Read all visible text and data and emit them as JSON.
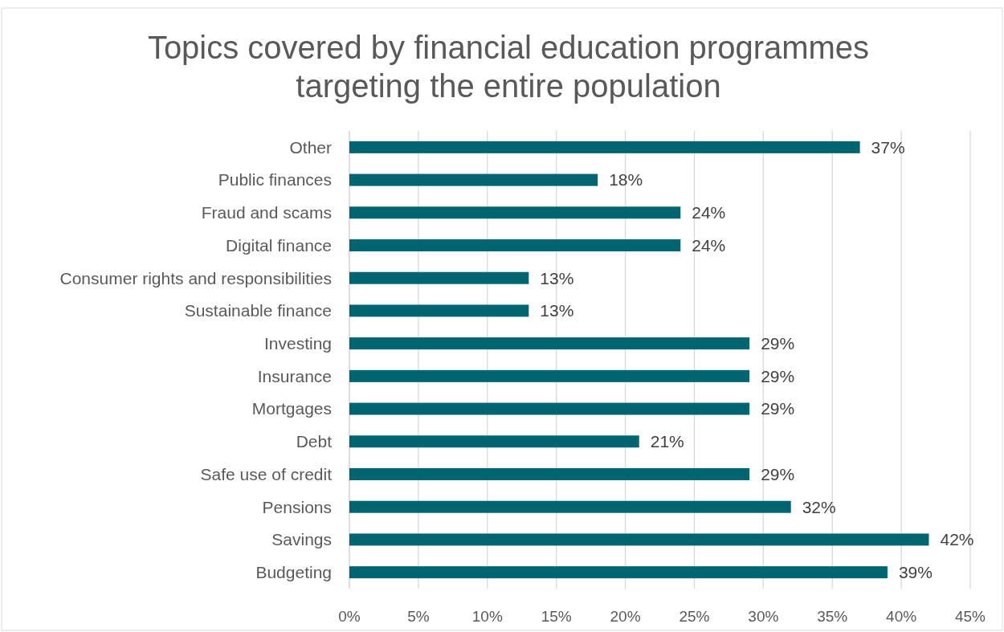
{
  "chart_data": {
    "type": "bar",
    "orientation": "horizontal",
    "title": "Topics covered by financial education programmes targeting the entire population",
    "categories": [
      "Other",
      "Public finances",
      "Fraud and scams",
      "Digital finance",
      "Consumer rights and responsibilities",
      "Sustainable finance",
      "Investing",
      "Insurance",
      "Mortgages",
      "Debt",
      "Safe use of credit",
      "Pensions",
      "Savings",
      "Budgeting"
    ],
    "values": [
      37,
      18,
      24,
      24,
      13,
      13,
      29,
      29,
      29,
      21,
      29,
      32,
      42,
      39
    ],
    "value_labels": [
      "37%",
      "18%",
      "24%",
      "24%",
      "13%",
      "13%",
      "29%",
      "29%",
      "29%",
      "21%",
      "29%",
      "32%",
      "42%",
      "39%"
    ],
    "color": "#006570",
    "xlim": [
      0,
      45
    ],
    "xticks": [
      {
        "value": 0,
        "label": "0%"
      },
      {
        "value": 5,
        "label": "5%"
      },
      {
        "value": 10,
        "label": "10%"
      },
      {
        "value": 15,
        "label": "15%"
      },
      {
        "value": 20,
        "label": "20%"
      },
      {
        "value": 25,
        "label": "25%"
      },
      {
        "value": 30,
        "label": "30%"
      },
      {
        "value": 35,
        "label": "35%"
      },
      {
        "value": 40,
        "label": "40%"
      },
      {
        "value": 45,
        "label": "45%"
      }
    ],
    "grid": "x"
  }
}
